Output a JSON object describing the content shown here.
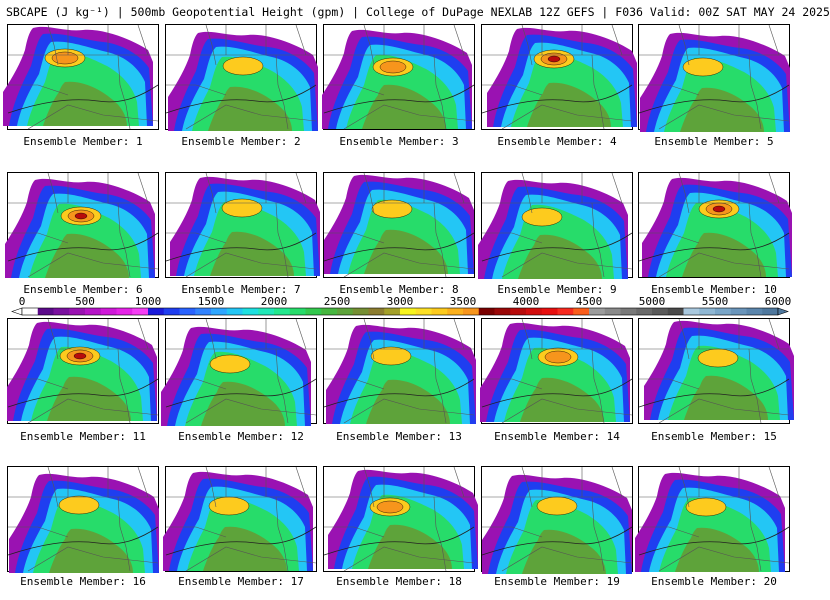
{
  "header": {
    "title": "SBCAPE (J kg⁻¹) | 500mb Geopotential Height (gpm) | College of DuPage NEXLAB 12Z GEFS | F036 Valid: 00Z SAT MAY 24 2025"
  },
  "colorbar": {
    "ticks": [
      "0",
      "500",
      "1000",
      "1500",
      "2000",
      "2500",
      "3000",
      "3500",
      "4000",
      "4500",
      "5000",
      "5500",
      "6000"
    ],
    "colors": [
      "#ffffff",
      "#5b0a8a",
      "#7a109f",
      "#9a12b2",
      "#b614c8",
      "#d019da",
      "#e623e8",
      "#f53ef5",
      "#1a1adb",
      "#1f3ef0",
      "#2a63ff",
      "#3283ff",
      "#2ea6ff",
      "#23c6f5",
      "#1ee0e0",
      "#21e8b8",
      "#23e88e",
      "#27dc6a",
      "#34c94e",
      "#47b740",
      "#5ea33a",
      "#768f34",
      "#8d7d30",
      "#a4a02a",
      "#f8f51e",
      "#fde026",
      "#fdcb1e",
      "#fbb01c",
      "#f7951c",
      "#7a0000",
      "#9a0707",
      "#b80b0b",
      "#d30d0d",
      "#e80f0f",
      "#f82a1f",
      "#fb5e1c",
      "#9c9c9c",
      "#8a8a8a",
      "#797979",
      "#6a6a6a",
      "#5a5a5a",
      "#4a4a4a",
      "#a9c8de",
      "#8fb7d4",
      "#7aa6c8",
      "#6a95bb",
      "#5b86ad",
      "#4f789e"
    ]
  },
  "members": [
    {
      "label": "Ensemble Member: 1",
      "peak_level": 3
    },
    {
      "label": "Ensemble Member: 2",
      "peak_level": 2
    },
    {
      "label": "Ensemble Member: 3",
      "peak_level": 3
    },
    {
      "label": "Ensemble Member: 4",
      "peak_level": 4
    },
    {
      "label": "Ensemble Member: 5",
      "peak_level": 2
    },
    {
      "label": "Ensemble Member: 6",
      "peak_level": 4
    },
    {
      "label": "Ensemble Member: 7",
      "peak_level": 2
    },
    {
      "label": "Ensemble Member: 8",
      "peak_level": 2
    },
    {
      "label": "Ensemble Member: 9",
      "peak_level": 2
    },
    {
      "label": "Ensemble Member: 10",
      "peak_level": 4
    },
    {
      "label": "Ensemble Member: 11",
      "peak_level": 4
    },
    {
      "label": "Ensemble Member: 12",
      "peak_level": 2
    },
    {
      "label": "Ensemble Member: 13",
      "peak_level": 2
    },
    {
      "label": "Ensemble Member: 14",
      "peak_level": 3
    },
    {
      "label": "Ensemble Member: 15",
      "peak_level": 2
    },
    {
      "label": "Ensemble Member: 16",
      "peak_level": 2
    },
    {
      "label": "Ensemble Member: 17",
      "peak_level": 2
    },
    {
      "label": "Ensemble Member: 18",
      "peak_level": 3
    },
    {
      "label": "Ensemble Member: 19",
      "peak_level": 2
    },
    {
      "label": "Ensemble Member: 20",
      "peak_level": 2
    }
  ]
}
